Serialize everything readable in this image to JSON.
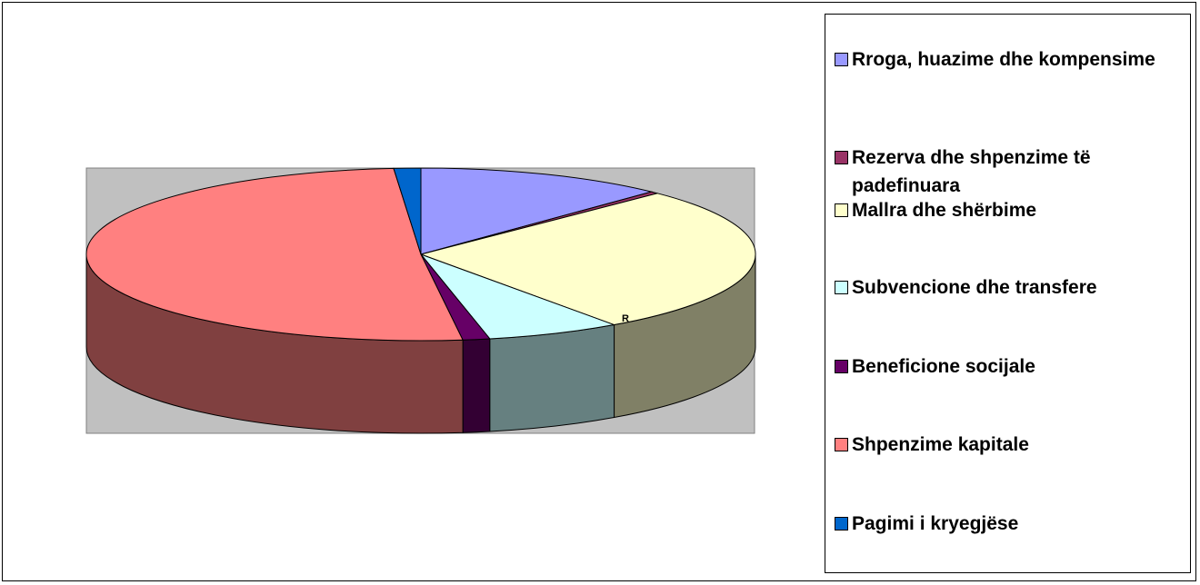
{
  "chart_data": {
    "type": "pie3d",
    "categories": [
      "Rroga, huazime dhe kompensime",
      "Rezerva dhe shpenzime të padefinuara",
      "Mallra dhe shërbime",
      "Subvencione dhe transfere",
      "Beneficione socijale",
      "Shpenzime kapitale",
      "Pagimi i kryegjëse"
    ],
    "values": [
      12.1,
      0.4,
      27.7,
      6.5,
      1.3,
      50.7,
      1.3
    ],
    "colors": [
      "#9999ff",
      "#993366",
      "#ffffcc",
      "#ccffff",
      "#660066",
      "#ff8080",
      "#0066cc"
    ],
    "annotation": "R",
    "legend": "right"
  }
}
